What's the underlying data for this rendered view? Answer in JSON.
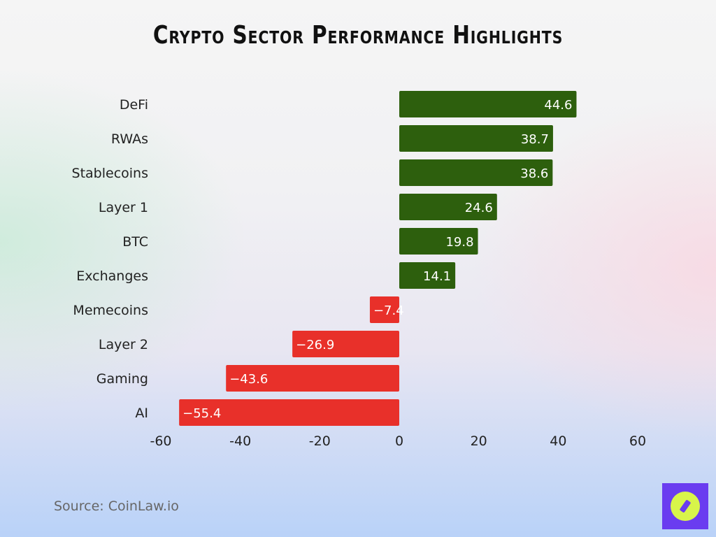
{
  "chart_data": {
    "type": "bar",
    "orientation": "horizontal",
    "title": "Crypto Sector Performance Highlights",
    "categories": [
      "DeFi",
      "RWAs",
      "Stablecoins",
      "Layer 1",
      "BTC",
      "Exchanges",
      "Memecoins",
      "Layer 2",
      "Gaming",
      "AI"
    ],
    "values": [
      44.6,
      38.7,
      38.6,
      24.6,
      19.8,
      14.1,
      -7.4,
      -26.9,
      -43.6,
      -55.4
    ],
    "xlim": [
      -60,
      60
    ],
    "xticks": [
      -60,
      -40,
      -20,
      0,
      20,
      40,
      60
    ],
    "grid": false,
    "colors": {
      "positive": "#2d5f0d",
      "negative": "#e8302a"
    }
  },
  "source": "Source: CoinLaw.io",
  "logo": {
    "icon": "compass-icon",
    "colors": [
      "#6a3cf0",
      "#d8f54a"
    ]
  }
}
